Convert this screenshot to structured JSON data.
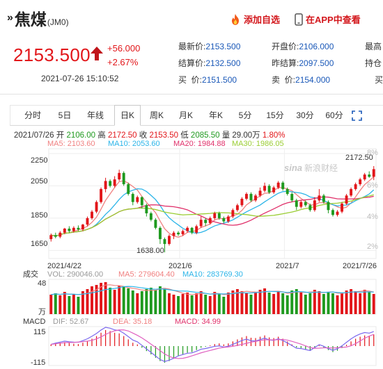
{
  "header": {
    "name": "焦煤",
    "code": "(JM0)",
    "add_watch": "添加自选",
    "open_app": "在APP中查看"
  },
  "quote": {
    "price": "2153.500",
    "change": "+56.000",
    "change_pct": "+2.67%",
    "timestamp": "2021-07-26 15:10:52",
    "fields": [
      {
        "label": "最新价:",
        "value": "2153.500"
      },
      {
        "label": "开盘价:",
        "value": "2106.000"
      },
      {
        "label": "最高",
        "value": ""
      },
      {
        "label": "结算价:",
        "value": "2132.500"
      },
      {
        "label": "昨结算:",
        "value": "2097.500"
      },
      {
        "label": "持仓",
        "value": ""
      },
      {
        "label": "买  价:",
        "value": "2151.500"
      },
      {
        "label": "卖  价:",
        "value": "2154.000"
      },
      {
        "label": "买",
        "value": ""
      }
    ]
  },
  "tabs": [
    {
      "label": "分时",
      "active": false
    },
    {
      "label": "5日",
      "active": false
    },
    {
      "label": "年线",
      "active": false
    },
    {
      "label": "日K",
      "active": true
    },
    {
      "label": "周K",
      "active": false
    },
    {
      "label": "月K",
      "active": false
    },
    {
      "label": "年K",
      "active": false
    },
    {
      "label": "5分",
      "active": false
    },
    {
      "label": "15分",
      "active": false
    },
    {
      "label": "30分",
      "active": false
    },
    {
      "label": "60分",
      "active": false
    }
  ],
  "info": {
    "date": "2021/07/26",
    "open_label": "开",
    "open": "2106.00",
    "high_label": "高",
    "high": "2172.50",
    "close_label": "收",
    "close": "2153.50",
    "low_label": "低",
    "low": "2085.50",
    "vol_label": "量",
    "vol": "29.00万",
    "pct": "1.80%"
  },
  "ma": {
    "ma5": "MA5: 2103.60",
    "ma10": "MA10: 2053.60",
    "ma20": "MA20: 1984.88",
    "ma30": "MA30: 1986.05"
  },
  "colors": {
    "up": "#e2161a",
    "down": "#1f9a1f",
    "ma5": "#f08080",
    "ma10": "#2ab4e8",
    "ma20": "#e0306a",
    "ma30": "#9acd32",
    "link": "#1a58b8"
  },
  "chart_labels": {
    "y_ticks": [
      "2250",
      "2050",
      "1850",
      "1650"
    ],
    "pct_ticks": [
      "8%",
      "6%",
      "4%",
      "2%"
    ],
    "x_ticks": [
      "2021/4/22",
      "2021/6",
      "2021/7",
      "2021/7/26"
    ],
    "max_label": "2172.50",
    "min_label": "1638.00",
    "watermark": "新浪财经",
    "watermark_brand": "sina"
  },
  "volume": {
    "title": "成交",
    "vol": "VOL: 290046.00",
    "ma5": "MA5: 279604.40",
    "ma10": "MA10: 283769.30",
    "ytop": "48",
    "unit": "万"
  },
  "macd": {
    "title": "MACD",
    "dif": "DIF: 52.67",
    "dea": "DEA: 35.18",
    "macd": "MACD: 34.99",
    "ytop": "115",
    "ybot": "-115"
  },
  "chart_data": {
    "type": "candlestick",
    "title": "焦煤 (JM0) 日K",
    "ylim": [
      1600,
      2280
    ],
    "candles": [
      [
        1720,
        1745,
        1705,
        1755
      ],
      [
        1745,
        1735,
        1725,
        1760
      ],
      [
        1735,
        1760,
        1725,
        1770
      ],
      [
        1760,
        1785,
        1750,
        1790
      ],
      [
        1785,
        1770,
        1760,
        1800
      ],
      [
        1770,
        1790,
        1760,
        1800
      ],
      [
        1790,
        1780,
        1770,
        1805
      ],
      [
        1780,
        1810,
        1770,
        1815
      ],
      [
        1810,
        1850,
        1800,
        1860
      ],
      [
        1850,
        1890,
        1840,
        1900
      ],
      [
        1890,
        1950,
        1880,
        1960
      ],
      [
        1950,
        2030,
        1940,
        2040
      ],
      [
        2030,
        2080,
        2010,
        2100
      ],
      [
        2080,
        2050,
        2040,
        2090
      ],
      [
        2050,
        2090,
        2040,
        2110
      ],
      [
        2090,
        2130,
        2080,
        2150
      ],
      [
        2130,
        2060,
        2050,
        2140
      ],
      [
        2060,
        2000,
        1990,
        2070
      ],
      [
        2000,
        1950,
        1930,
        2010
      ],
      [
        1950,
        1980,
        1940,
        1990
      ],
      [
        1980,
        1930,
        1910,
        1985
      ],
      [
        1930,
        1880,
        1860,
        1940
      ],
      [
        1880,
        1840,
        1830,
        1890
      ],
      [
        1840,
        1790,
        1780,
        1850
      ],
      [
        1790,
        1720,
        1690,
        1800
      ],
      [
        1720,
        1690,
        1638,
        1730
      ],
      [
        1690,
        1740,
        1680,
        1750
      ],
      [
        1740,
        1760,
        1720,
        1770
      ],
      [
        1760,
        1750,
        1740,
        1770
      ],
      [
        1750,
        1770,
        1740,
        1780
      ],
      [
        1770,
        1790,
        1760,
        1800
      ],
      [
        1790,
        1760,
        1750,
        1795
      ],
      [
        1760,
        1800,
        1750,
        1810
      ],
      [
        1800,
        1840,
        1790,
        1860
      ],
      [
        1840,
        1820,
        1800,
        1850
      ],
      [
        1820,
        1850,
        1810,
        1860
      ],
      [
        1850,
        1880,
        1840,
        1890
      ],
      [
        1880,
        1850,
        1840,
        1890
      ],
      [
        1850,
        1830,
        1820,
        1860
      ],
      [
        1830,
        1860,
        1820,
        1870
      ],
      [
        1860,
        1900,
        1850,
        1910
      ],
      [
        1900,
        1930,
        1890,
        1940
      ],
      [
        1930,
        1970,
        1920,
        1980
      ],
      [
        1970,
        2000,
        1960,
        2010
      ],
      [
        2000,
        1960,
        1950,
        2010
      ],
      [
        1960,
        1990,
        1950,
        2000
      ],
      [
        1990,
        2020,
        1980,
        2040
      ],
      [
        2020,
        2050,
        2010,
        2070
      ],
      [
        2050,
        2010,
        2000,
        2060
      ],
      [
        2010,
        2040,
        2000,
        2050
      ],
      [
        2040,
        2070,
        2030,
        2080
      ],
      [
        2070,
        2030,
        2020,
        2080
      ],
      [
        2030,
        2000,
        1990,
        2040
      ],
      [
        2000,
        1960,
        1950,
        2010
      ],
      [
        1960,
        1920,
        1900,
        1970
      ],
      [
        1920,
        1950,
        1910,
        1960
      ],
      [
        1950,
        1930,
        1920,
        1960
      ],
      [
        1930,
        1900,
        1890,
        1940
      ],
      [
        1900,
        1960,
        1890,
        1980
      ],
      [
        1960,
        1990,
        1950,
        2030
      ],
      [
        1990,
        1950,
        1940,
        2000
      ],
      [
        1950,
        1900,
        1880,
        1960
      ],
      [
        1900,
        1870,
        1860,
        1910
      ],
      [
        1870,
        1890,
        1860,
        1900
      ],
      [
        1890,
        1940,
        1880,
        1950
      ],
      [
        1940,
        1990,
        1930,
        2000
      ],
      [
        1990,
        2030,
        1980,
        2040
      ],
      [
        2030,
        2060,
        2020,
        2070
      ],
      [
        2060,
        2090,
        2050,
        2100
      ],
      [
        2090,
        2120,
        2080,
        2130
      ],
      [
        2120,
        2106,
        2100,
        2140
      ],
      [
        2106,
        2153.5,
        2085.5,
        2172.5
      ]
    ],
    "volumes": [
      28,
      30,
      27,
      32,
      26,
      29,
      25,
      33,
      36,
      40,
      42,
      45,
      46,
      38,
      35,
      41,
      39,
      37,
      34,
      30,
      33,
      36,
      38,
      35,
      40,
      37,
      30,
      28,
      26,
      29,
      31,
      27,
      30,
      33,
      28,
      26,
      32,
      29,
      25,
      31,
      34,
      36,
      33,
      30,
      28,
      32,
      35,
      37,
      31,
      29,
      33,
      30,
      27,
      34,
      36,
      31,
      28,
      30,
      35,
      33,
      29,
      32,
      30,
      27,
      31,
      34,
      36,
      33,
      30,
      35,
      32,
      29
    ],
    "macd_hist": [
      5,
      8,
      10,
      12,
      9,
      7,
      6,
      10,
      15,
      22,
      30,
      40,
      48,
      45,
      40,
      38,
      30,
      20,
      10,
      5,
      -5,
      -15,
      -25,
      -35,
      -45,
      -50,
      -45,
      -38,
      -30,
      -25,
      -20,
      -18,
      -12,
      -5,
      -2,
      2,
      6,
      8,
      5,
      8,
      14,
      20,
      26,
      30,
      25,
      24,
      28,
      32,
      26,
      24,
      28,
      22,
      14,
      5,
      -4,
      -6,
      -10,
      -14,
      -6,
      2,
      -4,
      -12,
      -18,
      -14,
      -6,
      4,
      14,
      22,
      28,
      32,
      30,
      35
    ]
  }
}
